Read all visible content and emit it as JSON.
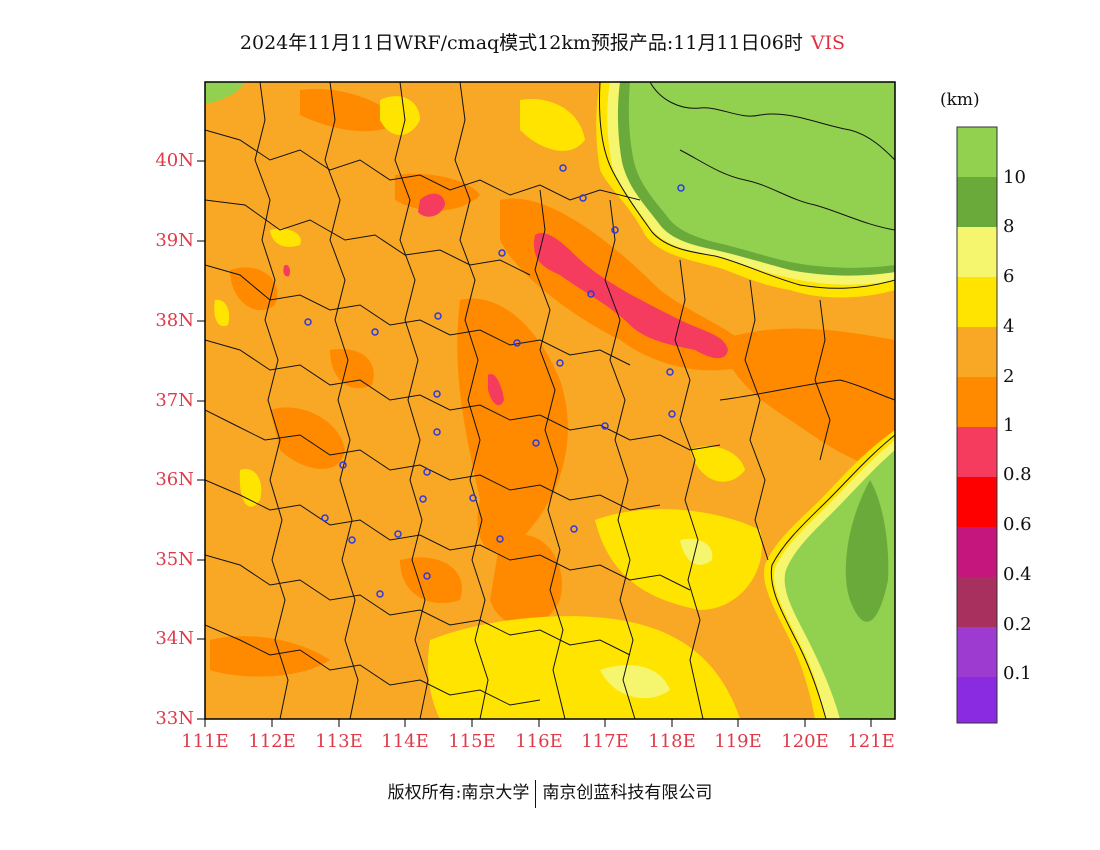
{
  "title": {
    "main": "2024年11月11日WRF/cmaq模式12km预报产品:11月11日06时",
    "variable": "VIS"
  },
  "axes": {
    "latitude_labels": [
      "40N",
      "39N",
      "38N",
      "37N",
      "36N",
      "35N",
      "34N",
      "33N"
    ],
    "longitude_labels": [
      "111E",
      "112E",
      "113E",
      "114E",
      "115E",
      "116E",
      "117E",
      "118E",
      "119E",
      "120E",
      "121E"
    ],
    "label_color": "#e03a4a"
  },
  "colorbar": {
    "unit": "(km)",
    "labels": [
      "10",
      "8",
      "6",
      "4",
      "2",
      "1",
      "0.8",
      "0.6",
      "0.4",
      "0.2",
      "0.1"
    ],
    "colors": [
      "#92d050",
      "#6aaa3a",
      "#f5f56e",
      "#ffe400",
      "#f9a825",
      "#ff8a00",
      "#f53c5e",
      "#ff0000",
      "#c4167d",
      "#a8305e",
      "#9d3ad0",
      "#8a2be2"
    ]
  },
  "footer": {
    "left": "版权所有:南京大学",
    "right": "南京创蓝科技有限公司"
  }
}
